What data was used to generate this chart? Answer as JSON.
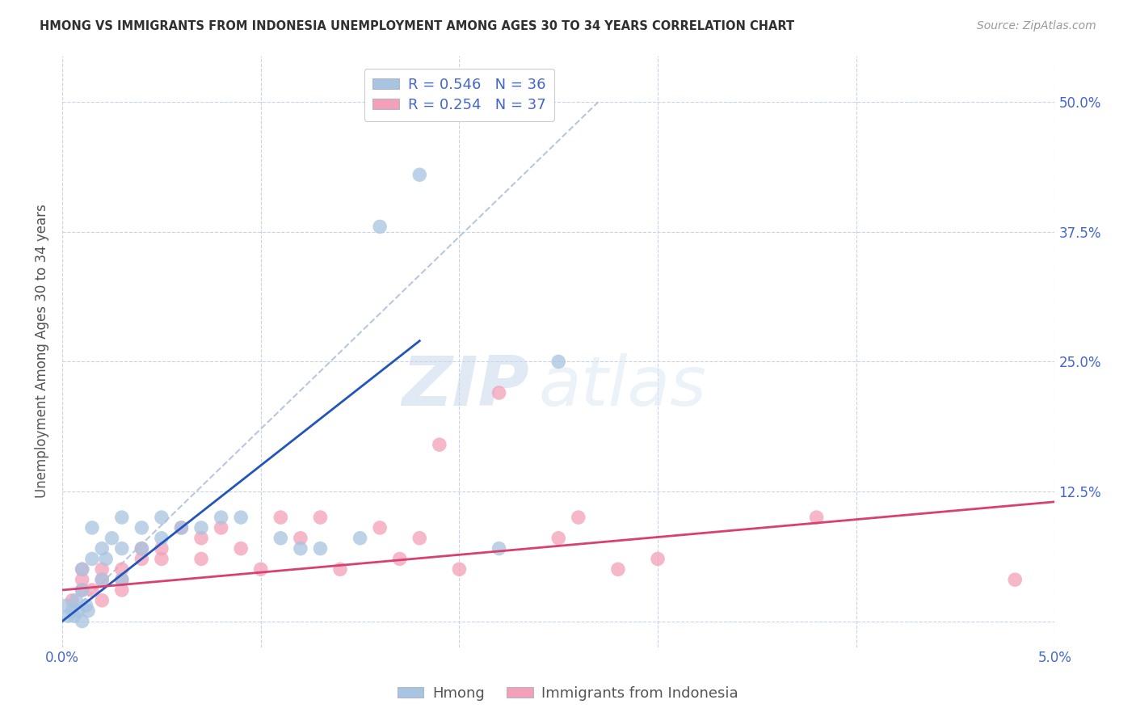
{
  "title": "HMONG VS IMMIGRANTS FROM INDONESIA UNEMPLOYMENT AMONG AGES 30 TO 34 YEARS CORRELATION CHART",
  "source": "Source: ZipAtlas.com",
  "ylabel": "Unemployment Among Ages 30 to 34 years",
  "xlim": [
    0.0,
    0.05
  ],
  "ylim": [
    -0.025,
    0.545
  ],
  "yticks": [
    0.0,
    0.125,
    0.25,
    0.375,
    0.5
  ],
  "ytick_labels": [
    "",
    "12.5%",
    "25.0%",
    "37.5%",
    "50.0%"
  ],
  "xticks": [
    0.0,
    0.01,
    0.02,
    0.03,
    0.04,
    0.05
  ],
  "xtick_labels": [
    "0.0%",
    "",
    "",
    "",
    "",
    "5.0%"
  ],
  "hmong_R": 0.546,
  "hmong_N": 36,
  "indonesia_R": 0.254,
  "indonesia_N": 37,
  "hmong_color": "#a8c4e0",
  "indonesia_color": "#f4a0b8",
  "hmong_line_color": "#2255bb",
  "indonesia_line_color": "#d84070",
  "diagonal_color": "#b8c8dc",
  "title_color": "#303030",
  "axis_label_color": "#4466cc",
  "hmong_scatter_x": [
    0.0002,
    0.0003,
    0.0005,
    0.0006,
    0.0007,
    0.0008,
    0.001,
    0.001,
    0.001,
    0.0012,
    0.0013,
    0.0015,
    0.0015,
    0.002,
    0.002,
    0.0022,
    0.0025,
    0.003,
    0.003,
    0.003,
    0.004,
    0.004,
    0.005,
    0.005,
    0.006,
    0.007,
    0.008,
    0.009,
    0.011,
    0.012,
    0.013,
    0.015,
    0.016,
    0.018,
    0.022,
    0.025
  ],
  "hmong_scatter_y": [
    0.015,
    0.005,
    0.01,
    0.005,
    0.02,
    0.01,
    0.0,
    0.03,
    0.05,
    0.015,
    0.01,
    0.06,
    0.09,
    0.04,
    0.07,
    0.06,
    0.08,
    0.04,
    0.07,
    0.1,
    0.07,
    0.09,
    0.08,
    0.1,
    0.09,
    0.09,
    0.1,
    0.1,
    0.08,
    0.07,
    0.07,
    0.08,
    0.38,
    0.43,
    0.07,
    0.25
  ],
  "indonesia_scatter_x": [
    0.0005,
    0.001,
    0.001,
    0.001,
    0.0015,
    0.002,
    0.002,
    0.002,
    0.003,
    0.003,
    0.003,
    0.004,
    0.004,
    0.005,
    0.005,
    0.006,
    0.007,
    0.007,
    0.008,
    0.009,
    0.01,
    0.011,
    0.012,
    0.013,
    0.014,
    0.016,
    0.017,
    0.018,
    0.019,
    0.02,
    0.022,
    0.025,
    0.026,
    0.028,
    0.03,
    0.038,
    0.048
  ],
  "indonesia_scatter_y": [
    0.02,
    0.03,
    0.04,
    0.05,
    0.03,
    0.02,
    0.04,
    0.05,
    0.03,
    0.04,
    0.05,
    0.06,
    0.07,
    0.06,
    0.07,
    0.09,
    0.06,
    0.08,
    0.09,
    0.07,
    0.05,
    0.1,
    0.08,
    0.1,
    0.05,
    0.09,
    0.06,
    0.08,
    0.17,
    0.05,
    0.22,
    0.08,
    0.1,
    0.05,
    0.06,
    0.1,
    0.04
  ],
  "hmong_line_x": [
    0.0,
    0.018
  ],
  "hmong_line_y": [
    0.0,
    0.27
  ],
  "indonesia_line_x": [
    0.0,
    0.05
  ],
  "indonesia_line_y": [
    0.03,
    0.115
  ],
  "diag_line_x": [
    0.0,
    0.027
  ],
  "diag_line_y": [
    0.0,
    0.5
  ],
  "watermark_zip": "ZIP",
  "watermark_atlas": "atlas",
  "background_color": "#ffffff",
  "grid_color": "#c8d4e4"
}
